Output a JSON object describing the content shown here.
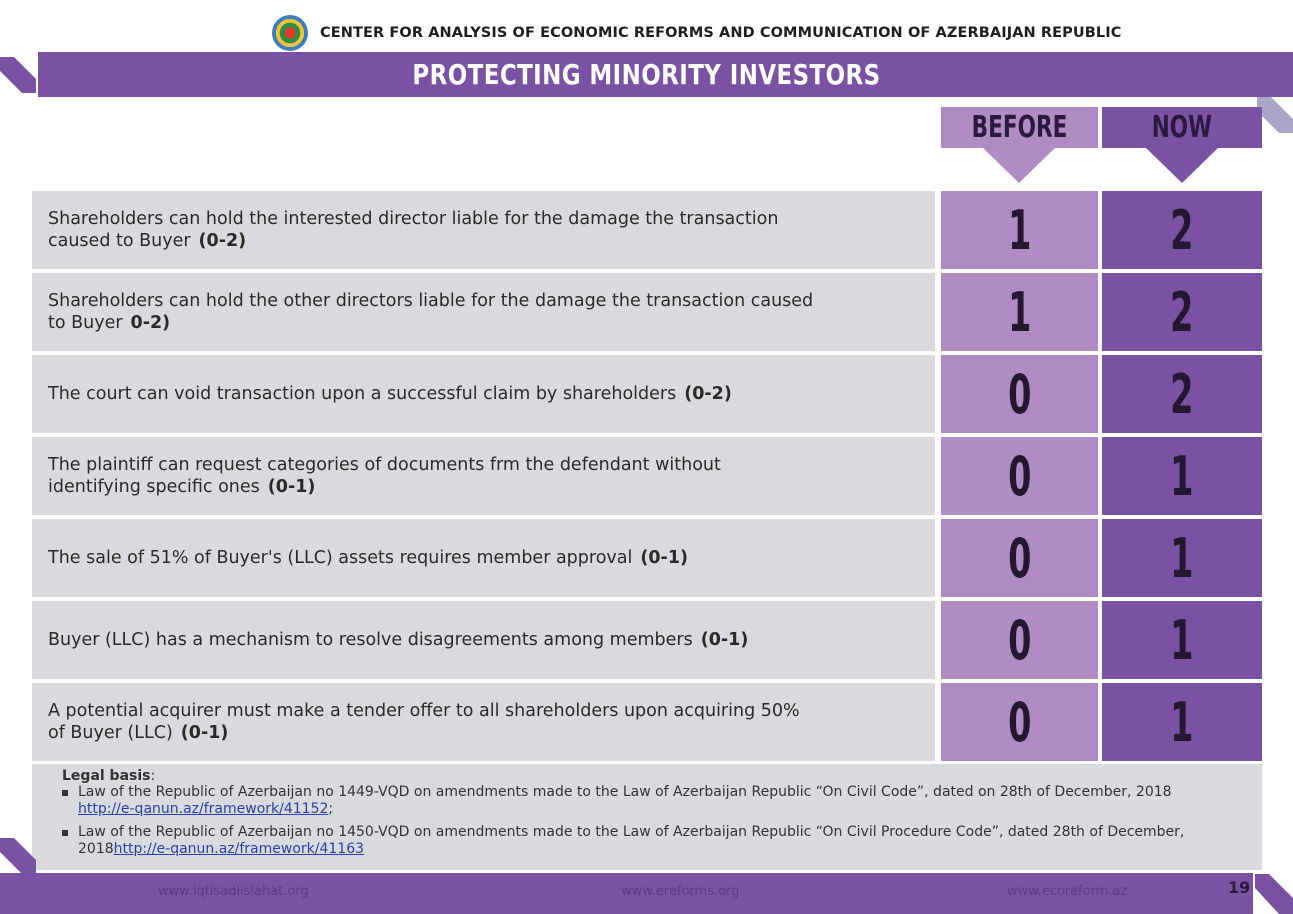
{
  "header": {
    "organization": "CENTER FOR ANALYSIS OF ECONOMIC REFORMS AND COMMUNICATION OF AZERBAIJAN REPUBLIC",
    "title": "PROTECTING MINORITY INVESTORS"
  },
  "columns": {
    "before": "BEFORE",
    "now": "NOW"
  },
  "rows": [
    {
      "text": "Shareholders can hold the interested director liable for the damage the transaction caused to Buyer",
      "range": "(0-2)",
      "before": "1",
      "now": "2"
    },
    {
      "text": "Shareholders can hold the other directors liable for the damage the transaction caused to Buyer",
      "range": "0-2)",
      "before": "1",
      "now": "2"
    },
    {
      "text": "The court can void transaction upon a successful claim by shareholders",
      "range": "(0-2)",
      "before": "0",
      "now": "2"
    },
    {
      "text": "The plaintiff can request categories of documents frm the defendant without identifying specific ones",
      "range": "(0-1)",
      "before": "0",
      "now": "1"
    },
    {
      "text": "The sale of 51% of Buyer's (LLC) assets requires member approval",
      "range": "(0-1)",
      "before": "0",
      "now": "1"
    },
    {
      "text": "Buyer (LLC) has a mechanism to resolve disagreements among members",
      "range": "(0-1)",
      "before": "0",
      "now": "1"
    },
    {
      "text": "A potential acquirer must make a tender offer to all shareholders upon acquiring 50% of Buyer (LLC)",
      "range": "(0-1)",
      "before": "0",
      "now": "1"
    }
  ],
  "legal": {
    "title": "Legal basis",
    "colon": ":",
    "items": [
      {
        "text": "Law of the Republic of Azerbaijan  no 1449-VQD  on amendments made to the Law of Azerbaijan Republic “On Civil Code”, dated on 28th of December, 2018",
        "link": "http://e-qanun.az/framework/41152",
        "after": ";"
      },
      {
        "text": "Law of the Republic of Azerbaijan  no 1450-VQD on amendments made to the Law of Azerbaijan Republic “On Civil Procedure Code”, dated 28th of December, 2018",
        "link": "http://e-qanun.az/framework/41163",
        "after": ""
      }
    ]
  },
  "footer": {
    "link1": "www.iqtisadiislahat.org",
    "link2": "www.ereforms.org",
    "link3": "www.ecoreform.az",
    "page": "19"
  },
  "colors": {
    "purple_dark": "#7b52a3",
    "purple_light": "#b18cc4",
    "row_gray": "#d8dadd"
  }
}
